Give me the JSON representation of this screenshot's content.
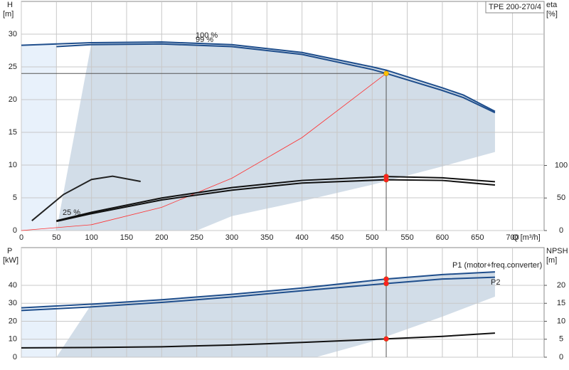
{
  "chart_data": [
    {
      "type": "line",
      "model": "TPE 200-270/4",
      "ylabel": "H",
      "yunit": "[m]",
      "y2label": "eta",
      "y2unit": "[%]",
      "xlabel": "Q [m³/h]",
      "xlim": [
        0,
        745
      ],
      "xticks": [
        0,
        50,
        100,
        150,
        200,
        250,
        300,
        350,
        400,
        450,
        500,
        550,
        600,
        650,
        700
      ],
      "ylim": [
        0,
        35
      ],
      "yticks": [
        0,
        5,
        10,
        15,
        20,
        25,
        30
      ],
      "y2lim": [
        0,
        352
      ],
      "y2ticks": [
        0,
        50,
        100
      ],
      "grid": true,
      "range_x": [
        50,
        250,
        300,
        400,
        500,
        600,
        675
      ],
      "range_lower": [
        0,
        0,
        2.2,
        4.5,
        7,
        9.8,
        12
      ],
      "series": [
        {
          "name": "100 %",
          "color": "#1f4e8c",
          "x": [
            0,
            100,
            200,
            300,
            400,
            500,
            520,
            600,
            630,
            675
          ],
          "values": [
            28.3,
            28.7,
            28.8,
            28.4,
            27.2,
            25,
            24.5,
            21.8,
            20.7,
            18.2
          ]
        },
        {
          "name": "99 %",
          "color": "#1f4e8c",
          "x": [
            50,
            100,
            200,
            300,
            400,
            500,
            520,
            600,
            630,
            675
          ],
          "values": [
            28.1,
            28.4,
            28.5,
            28.1,
            26.9,
            24.6,
            24,
            21.4,
            20.3,
            18
          ]
        },
        {
          "name": "25 %",
          "color": "#222222",
          "x": [
            15,
            60,
            100,
            130,
            170
          ],
          "values": [
            1.5,
            5.5,
            7.8,
            8.3,
            7.5
          ]
        },
        {
          "color": "#ff3030",
          "x": [
            0,
            100,
            200,
            300,
            400,
            520
          ],
          "values": [
            0,
            0.89,
            3.55,
            7.99,
            14.2,
            24
          ]
        },
        {
          "axis": "y2",
          "color": "#111111",
          "x": [
            50,
            100,
            200,
            300,
            400,
            520,
            600,
            675
          ],
          "values": [
            15,
            28,
            50,
            66,
            77,
            83,
            81,
            75
          ]
        },
        {
          "axis": "y2",
          "color": "#111111",
          "x": [
            50,
            100,
            200,
            300,
            400,
            520,
            600,
            675
          ],
          "values": [
            14,
            26,
            47,
            62,
            73,
            78,
            77,
            70
          ]
        }
      ],
      "points": [
        {
          "x": 520,
          "y": 24,
          "color": "#ffc000"
        },
        {
          "x": 520,
          "y": 83,
          "axis": "y2",
          "color": "#ff2020"
        },
        {
          "x": 520,
          "y": 78,
          "axis": "y2",
          "color": "#ff2020"
        }
      ]
    },
    {
      "type": "line",
      "ylabel": "P",
      "yunit": "[kW]",
      "y2label": "NPSH",
      "y2unit": "[m]",
      "xlim": [
        0,
        745
      ],
      "xticks": [
        0,
        50,
        100,
        150,
        200,
        250,
        300,
        350,
        400,
        450,
        500,
        550,
        600,
        650,
        700
      ],
      "ylim": [
        0,
        61
      ],
      "yticks": [
        0,
        10,
        20,
        30,
        40
      ],
      "y2lim": [
        0,
        30.5
      ],
      "y2ticks": [
        0,
        5,
        10,
        15,
        20
      ],
      "grid": true,
      "range_x": [
        50,
        420,
        500,
        600,
        675
      ],
      "range_lower": [
        0,
        0,
        8.7,
        22.6,
        33.7
      ],
      "series": [
        {
          "name": "P1 (motor+freq.converter)",
          "color": "#1f4e8c",
          "x": [
            0,
            100,
            200,
            300,
            400,
            520,
            600,
            675
          ],
          "values": [
            27.5,
            29.5,
            32,
            35,
            38.5,
            43.5,
            46,
            47.5
          ]
        },
        {
          "name": "P2",
          "color": "#1f4e8c",
          "x": [
            0,
            100,
            200,
            300,
            400,
            520,
            600,
            675
          ],
          "values": [
            26,
            28,
            30.5,
            33.5,
            37,
            41,
            43.5,
            44.5
          ]
        },
        {
          "axis": "y2",
          "color": "#111111",
          "x": [
            0,
            100,
            200,
            300,
            400,
            520,
            600,
            675
          ],
          "values": [
            2.6,
            2.7,
            2.9,
            3.4,
            4.1,
            5.1,
            5.8,
            6.7
          ]
        }
      ],
      "points": [
        {
          "x": 520,
          "y": 43.5,
          "color": "#ff2020"
        },
        {
          "x": 520,
          "y": 41,
          "color": "#ff2020"
        },
        {
          "x": 520,
          "y": 5.1,
          "axis": "y2",
          "color": "#ff2020"
        }
      ]
    }
  ]
}
